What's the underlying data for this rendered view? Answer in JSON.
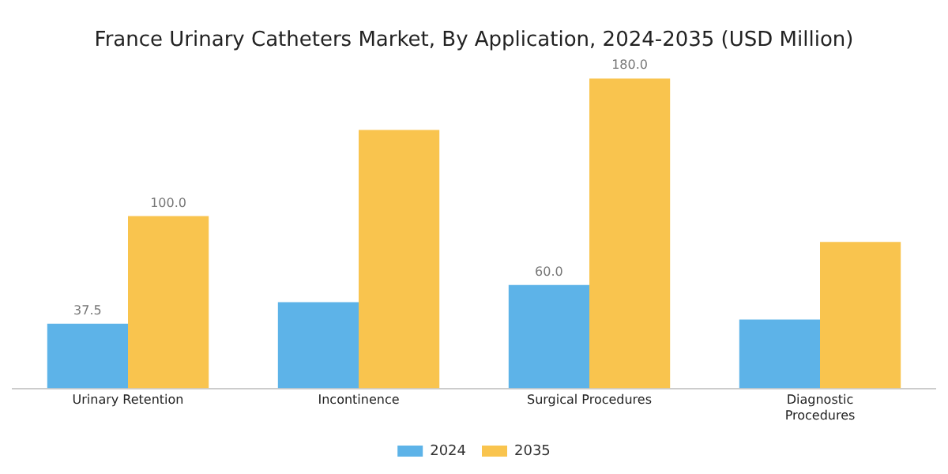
{
  "chart_data": {
    "type": "bar",
    "title": "France Urinary Catheters Market, By Application, 2024-2035 (USD Million)",
    "categories": [
      "Urinary Retention",
      "Incontinence",
      "Surgical Procedures",
      "Diagnostic Procedures"
    ],
    "series": [
      {
        "name": "2024",
        "color": "#5db3e8",
        "values": [
          37.5,
          50,
          60,
          40
        ],
        "value_labels": [
          "37.5",
          null,
          "60.0",
          null
        ]
      },
      {
        "name": "2035",
        "color": "#f9c44e",
        "values": [
          100,
          150,
          180,
          85
        ],
        "value_labels": [
          "100.0",
          null,
          "180.0",
          null
        ]
      }
    ],
    "grid": false,
    "legend": "bottom",
    "tick_labels": "x"
  }
}
